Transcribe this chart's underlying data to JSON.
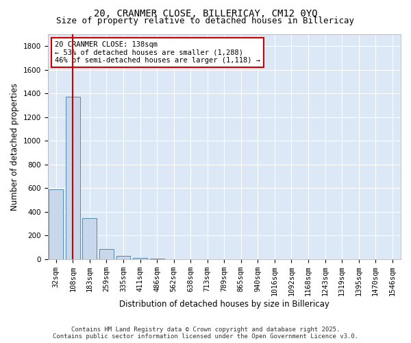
{
  "title": "20, CRANMER CLOSE, BILLERICAY, CM12 0YQ",
  "subtitle": "Size of property relative to detached houses in Billericay",
  "xlabel": "Distribution of detached houses by size in Billericay",
  "ylabel": "Number of detached properties",
  "categories": [
    "32sqm",
    "108sqm",
    "183sqm",
    "259sqm",
    "335sqm",
    "411sqm",
    "486sqm",
    "562sqm",
    "638sqm",
    "713sqm",
    "789sqm",
    "865sqm",
    "940sqm",
    "1016sqm",
    "1092sqm",
    "1168sqm",
    "1243sqm",
    "1319sqm",
    "1395sqm",
    "1470sqm",
    "1546sqm"
  ],
  "values": [
    590,
    1370,
    350,
    85,
    28,
    12,
    5,
    0,
    0,
    0,
    0,
    0,
    0,
    0,
    0,
    0,
    0,
    0,
    0,
    0,
    0
  ],
  "bar_color": "#c8d8ea",
  "bar_edge_color": "#5588aa",
  "vline_x": 1.0,
  "vline_color": "#cc0000",
  "annotation_text": "20 CRANMER CLOSE: 138sqm\n← 53% of detached houses are smaller (1,288)\n46% of semi-detached houses are larger (1,118) →",
  "annotation_box_color": "#ffffff",
  "annotation_box_edge_color": "#cc0000",
  "ylim": [
    0,
    1900
  ],
  "yticks": [
    0,
    200,
    400,
    600,
    800,
    1000,
    1200,
    1400,
    1600,
    1800
  ],
  "footer_line1": "Contains HM Land Registry data © Crown copyright and database right 2025.",
  "footer_line2": "Contains public sector information licensed under the Open Government Licence v3.0.",
  "fig_bg_color": "#ffffff",
  "plot_bg_color": "#dce8f5",
  "grid_color": "#ffffff",
  "title_fontsize": 10,
  "subtitle_fontsize": 9,
  "axis_label_fontsize": 8.5,
  "tick_fontsize": 7.5,
  "annotation_fontsize": 7.5,
  "footer_fontsize": 6.5
}
